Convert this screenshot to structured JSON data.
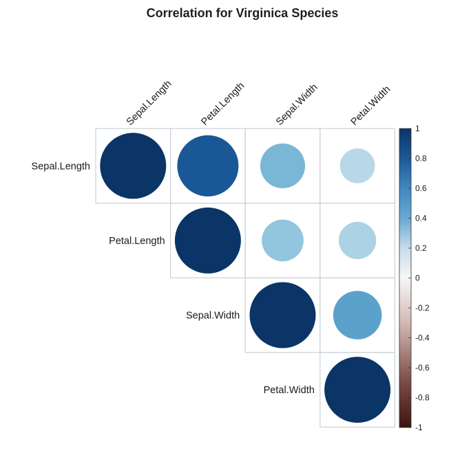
{
  "chart_data": {
    "type": "heatmap",
    "title": "Correlation for Virginica Species",
    "variables": [
      "Sepal.Length",
      "Petal.Length",
      "Sepal.Width",
      "Petal.Width"
    ],
    "matrix": [
      [
        1.0,
        0.86,
        0.46,
        0.28
      ],
      [
        0.86,
        1.0,
        0.4,
        0.32
      ],
      [
        0.46,
        0.4,
        1.0,
        0.54
      ],
      [
        0.28,
        0.32,
        0.54,
        1.0
      ]
    ],
    "layout": "upper-triangle",
    "colorbar": {
      "range": [
        -1,
        1
      ],
      "ticks": [
        "1",
        "0.8",
        "0.6",
        "0.4",
        "0.2",
        "0",
        "-0.2",
        "-0.4",
        "-0.6",
        "-0.8",
        "-1"
      ],
      "low_color": "#3b1512",
      "mid_color": "#f7f7f7",
      "high_color": "#0b3566"
    },
    "grid_color": "#c8d2da"
  }
}
